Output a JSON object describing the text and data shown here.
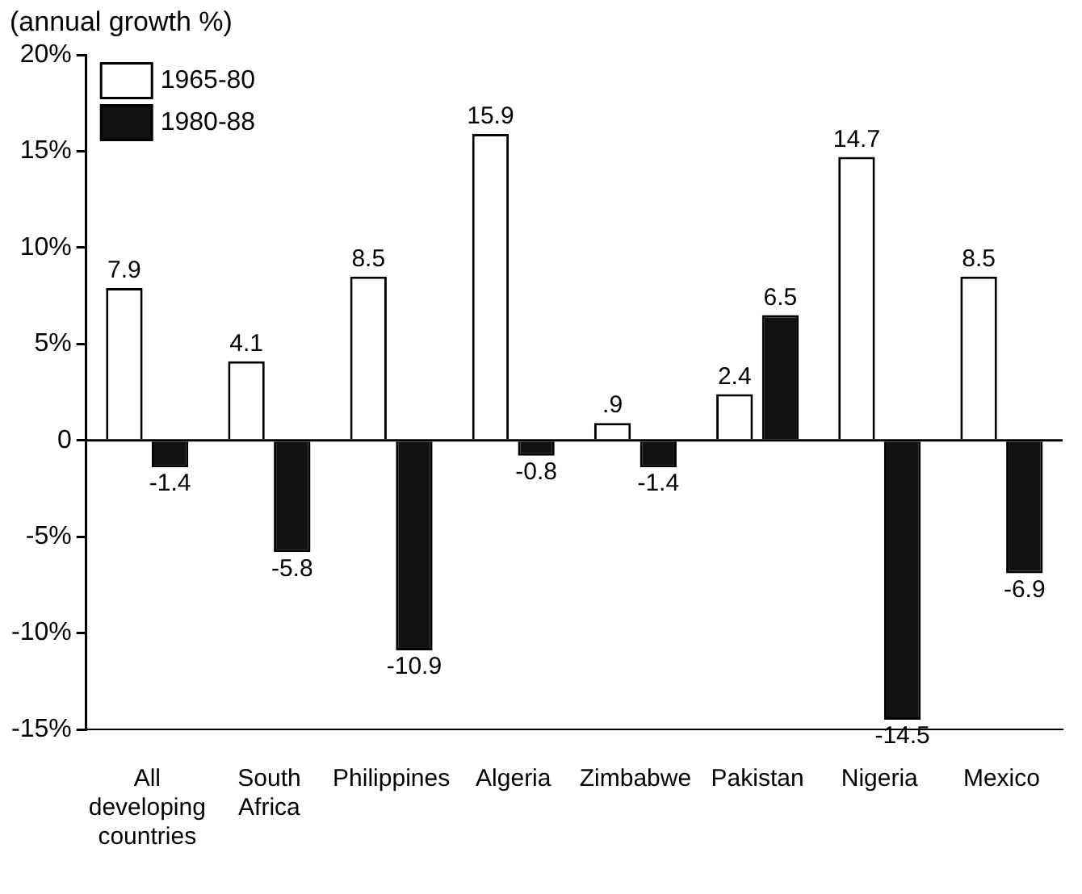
{
  "chart_data": {
    "type": "bar",
    "ylabel": "(annual growth %)",
    "categories": [
      "All developing countries",
      "South Africa",
      "Philippines",
      "Algeria",
      "Zimbabwe",
      "Pakistan",
      "Nigeria",
      "Mexico"
    ],
    "series": [
      {
        "name": "1965-80",
        "color": "#ffffff",
        "values": [
          7.9,
          4.1,
          8.5,
          15.9,
          0.9,
          2.4,
          14.7,
          8.5
        ],
        "value_labels": [
          "7.9",
          "4.1",
          "8.5",
          "15.9",
          ".9",
          "2.4",
          "14.7",
          "8.5"
        ]
      },
      {
        "name": "1980-88",
        "color": "#111111",
        "values": [
          -1.4,
          -5.8,
          -10.9,
          -0.8,
          -1.4,
          6.5,
          -14.5,
          -6.9
        ],
        "value_labels": [
          "-1.4",
          "-5.8",
          "-10.9",
          "-0.8",
          "-1.4",
          "6.5",
          "-14.5",
          "-6.9"
        ]
      }
    ],
    "ylim": [
      -15,
      20
    ],
    "yticks": [
      {
        "value": -15,
        "label": "-15%"
      },
      {
        "value": -10,
        "label": "-10%"
      },
      {
        "value": -5,
        "label": "-5%"
      },
      0,
      {
        "value": 5,
        "label": "5%"
      },
      {
        "value": 10,
        "label": "10%"
      },
      {
        "value": 15,
        "label": "15%"
      },
      {
        "value": 20,
        "label": "20%"
      }
    ],
    "ref_lines": [
      {
        "axis": "y",
        "value": 0
      }
    ],
    "grid": false,
    "legend": "top left"
  }
}
